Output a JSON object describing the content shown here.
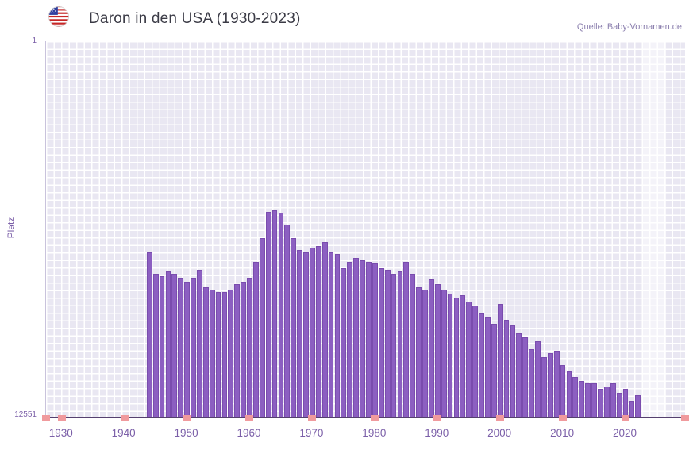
{
  "header": {
    "title": "Daron in den USA (1930-2023)",
    "source": "Quelle: Baby-Vornamen.de"
  },
  "chart_data": {
    "type": "bar",
    "title": "Daron in den USA (1930-2023)",
    "xlabel": "",
    "ylabel": "Platz",
    "y_axis": {
      "min": 1,
      "max": 12551,
      "inverted": true,
      "top_label": "1",
      "bottom_label": "12551"
    },
    "x_range": [
      1927.5,
      2029.5
    ],
    "x_ticks": [
      1930,
      1940,
      1950,
      1960,
      1970,
      1980,
      1990,
      2000,
      2010,
      2020
    ],
    "highlight_band": {
      "from": 2022.6,
      "to": 2026.4
    },
    "grid": true,
    "legend": false,
    "colors": {
      "bar_fill": "#8c5fc1",
      "bar_border": "#7a4cae",
      "plot_bg": "#e9e7f2",
      "grid_line": "#ffffff",
      "tick_label": "#7b5fa8",
      "axis_line": "#55406e",
      "axis_mark": "#f09a9d",
      "title": "#3b3b46",
      "source": "#8b7fae"
    },
    "years": [
      1944,
      1945,
      1946,
      1947,
      1948,
      1949,
      1950,
      1951,
      1952,
      1953,
      1954,
      1955,
      1956,
      1957,
      1958,
      1959,
      1960,
      1961,
      1962,
      1963,
      1964,
      1965,
      1966,
      1967,
      1968,
      1969,
      1970,
      1971,
      1972,
      1973,
      1974,
      1975,
      1976,
      1977,
      1978,
      1979,
      1980,
      1981,
      1982,
      1983,
      1984,
      1985,
      1986,
      1987,
      1988,
      1989,
      1990,
      1991,
      1992,
      1993,
      1994,
      1995,
      1996,
      1997,
      1998,
      1999,
      2000,
      2001,
      2002,
      2003,
      2004,
      2005,
      2006,
      2007,
      2008,
      2009,
      2010,
      2011,
      2012,
      2013,
      2014,
      2015,
      2016,
      2017,
      2018,
      2019,
      2020,
      2021,
      2022
    ],
    "ranks": [
      7050,
      7770,
      7850,
      7690,
      7770,
      7910,
      8040,
      7910,
      7640,
      8220,
      8300,
      8380,
      8380,
      8300,
      8120,
      8040,
      7910,
      7380,
      6580,
      5700,
      5650,
      5730,
      6130,
      6580,
      6980,
      7060,
      6900,
      6850,
      6710,
      7060,
      7110,
      7590,
      7380,
      7240,
      7320,
      7380,
      7430,
      7590,
      7640,
      7770,
      7690,
      7380,
      7770,
      8220,
      8300,
      7960,
      8120,
      8300,
      8440,
      8570,
      8490,
      8700,
      8830,
      9100,
      9230,
      9440,
      8780,
      9310,
      9500,
      9760,
      9900,
      10290,
      10030,
      10560,
      10430,
      10350,
      10820,
      11040,
      11220,
      11360,
      11430,
      11430,
      11620,
      11540,
      11430,
      11750,
      11620,
      12020,
      11830
    ]
  }
}
